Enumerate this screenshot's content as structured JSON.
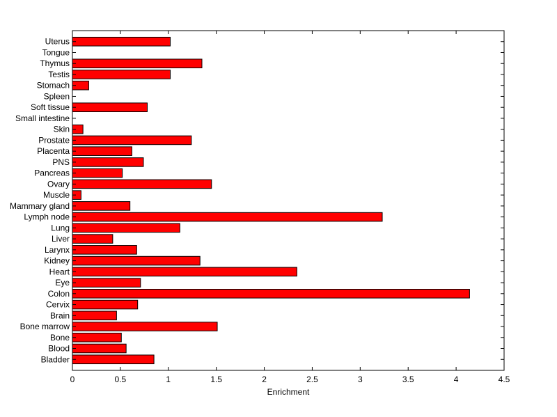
{
  "chart_data": {
    "type": "bar",
    "orientation": "horizontal",
    "title": "",
    "xlabel": "Enrichment",
    "ylabel": "",
    "xlim": [
      0,
      4.5
    ],
    "xticks": [
      0,
      0.5,
      1,
      1.5,
      2,
      2.5,
      3,
      3.5,
      4,
      4.5
    ],
    "xtick_labels": [
      "0",
      "0.5",
      "1",
      "1.5",
      "2",
      "2.5",
      "3",
      "3.5",
      "4",
      "4.5"
    ],
    "grid": false,
    "bar_color": "#ff0000",
    "categories": [
      "Bladder",
      "Blood",
      "Bone",
      "Bone marrow",
      "Brain",
      "Cervix",
      "Colon",
      "Eye",
      "Heart",
      "Kidney",
      "Larynx",
      "Liver",
      "Lung",
      "Lymph node",
      "Mammary gland",
      "Muscle",
      "Ovary",
      "Pancreas",
      "PNS",
      "Placenta",
      "Prostate",
      "Skin",
      "Small intestine",
      "Soft tissue",
      "Spleen",
      "Stomach",
      "Testis",
      "Thymus",
      "Tongue",
      "Uterus"
    ],
    "values": [
      0.85,
      0.56,
      0.51,
      1.51,
      0.46,
      0.68,
      4.14,
      0.71,
      2.34,
      1.33,
      0.67,
      0.42,
      1.12,
      3.23,
      0.6,
      0.09,
      1.45,
      0.52,
      0.74,
      0.62,
      1.24,
      0.11,
      0,
      0.78,
      0,
      0.17,
      1.02,
      1.35,
      0,
      1.02
    ]
  }
}
